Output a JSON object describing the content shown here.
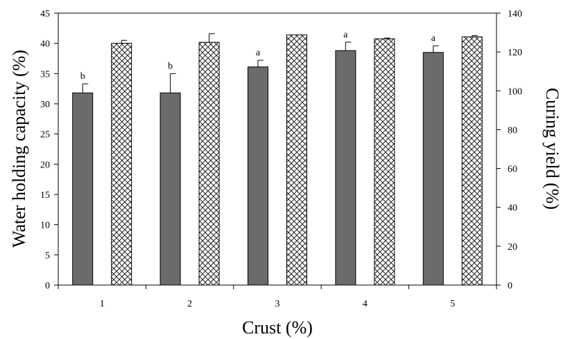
{
  "chart_data": {
    "type": "bar",
    "xlabel": "Crust (%)",
    "ylabel_left": "Water holding capacity (%)",
    "ylabel_right": "Curing yield (%)",
    "categories": [
      "1",
      "2",
      "3",
      "4",
      "5"
    ],
    "ylim_left": [
      0,
      45
    ],
    "ylim_right": [
      0,
      140
    ],
    "yticks_left": [
      0,
      5,
      10,
      15,
      20,
      25,
      30,
      35,
      40,
      45
    ],
    "yticks_right": [
      0,
      20,
      40,
      60,
      80,
      100,
      120,
      140
    ],
    "grid": false,
    "series": [
      {
        "axis": "left",
        "fill": "#6b6b6b",
        "pattern": "solid",
        "values": [
          31.8,
          31.8,
          36.1,
          38.8,
          38.5
        ],
        "errors": [
          1.5,
          3.2,
          1.1,
          1.4,
          1.1
        ],
        "labels": [
          "b",
          "b",
          "a",
          "a",
          "a"
        ]
      },
      {
        "axis": "right",
        "fill": "#ffffff",
        "pattern": "crosshatch",
        "values": [
          124.5,
          125.0,
          128.8,
          126.8,
          127.8
        ],
        "errors": [
          1.5,
          4.4,
          0.0,
          0.4,
          0.6
        ],
        "labels": [
          "",
          "",
          "",
          "",
          ""
        ]
      }
    ]
  }
}
